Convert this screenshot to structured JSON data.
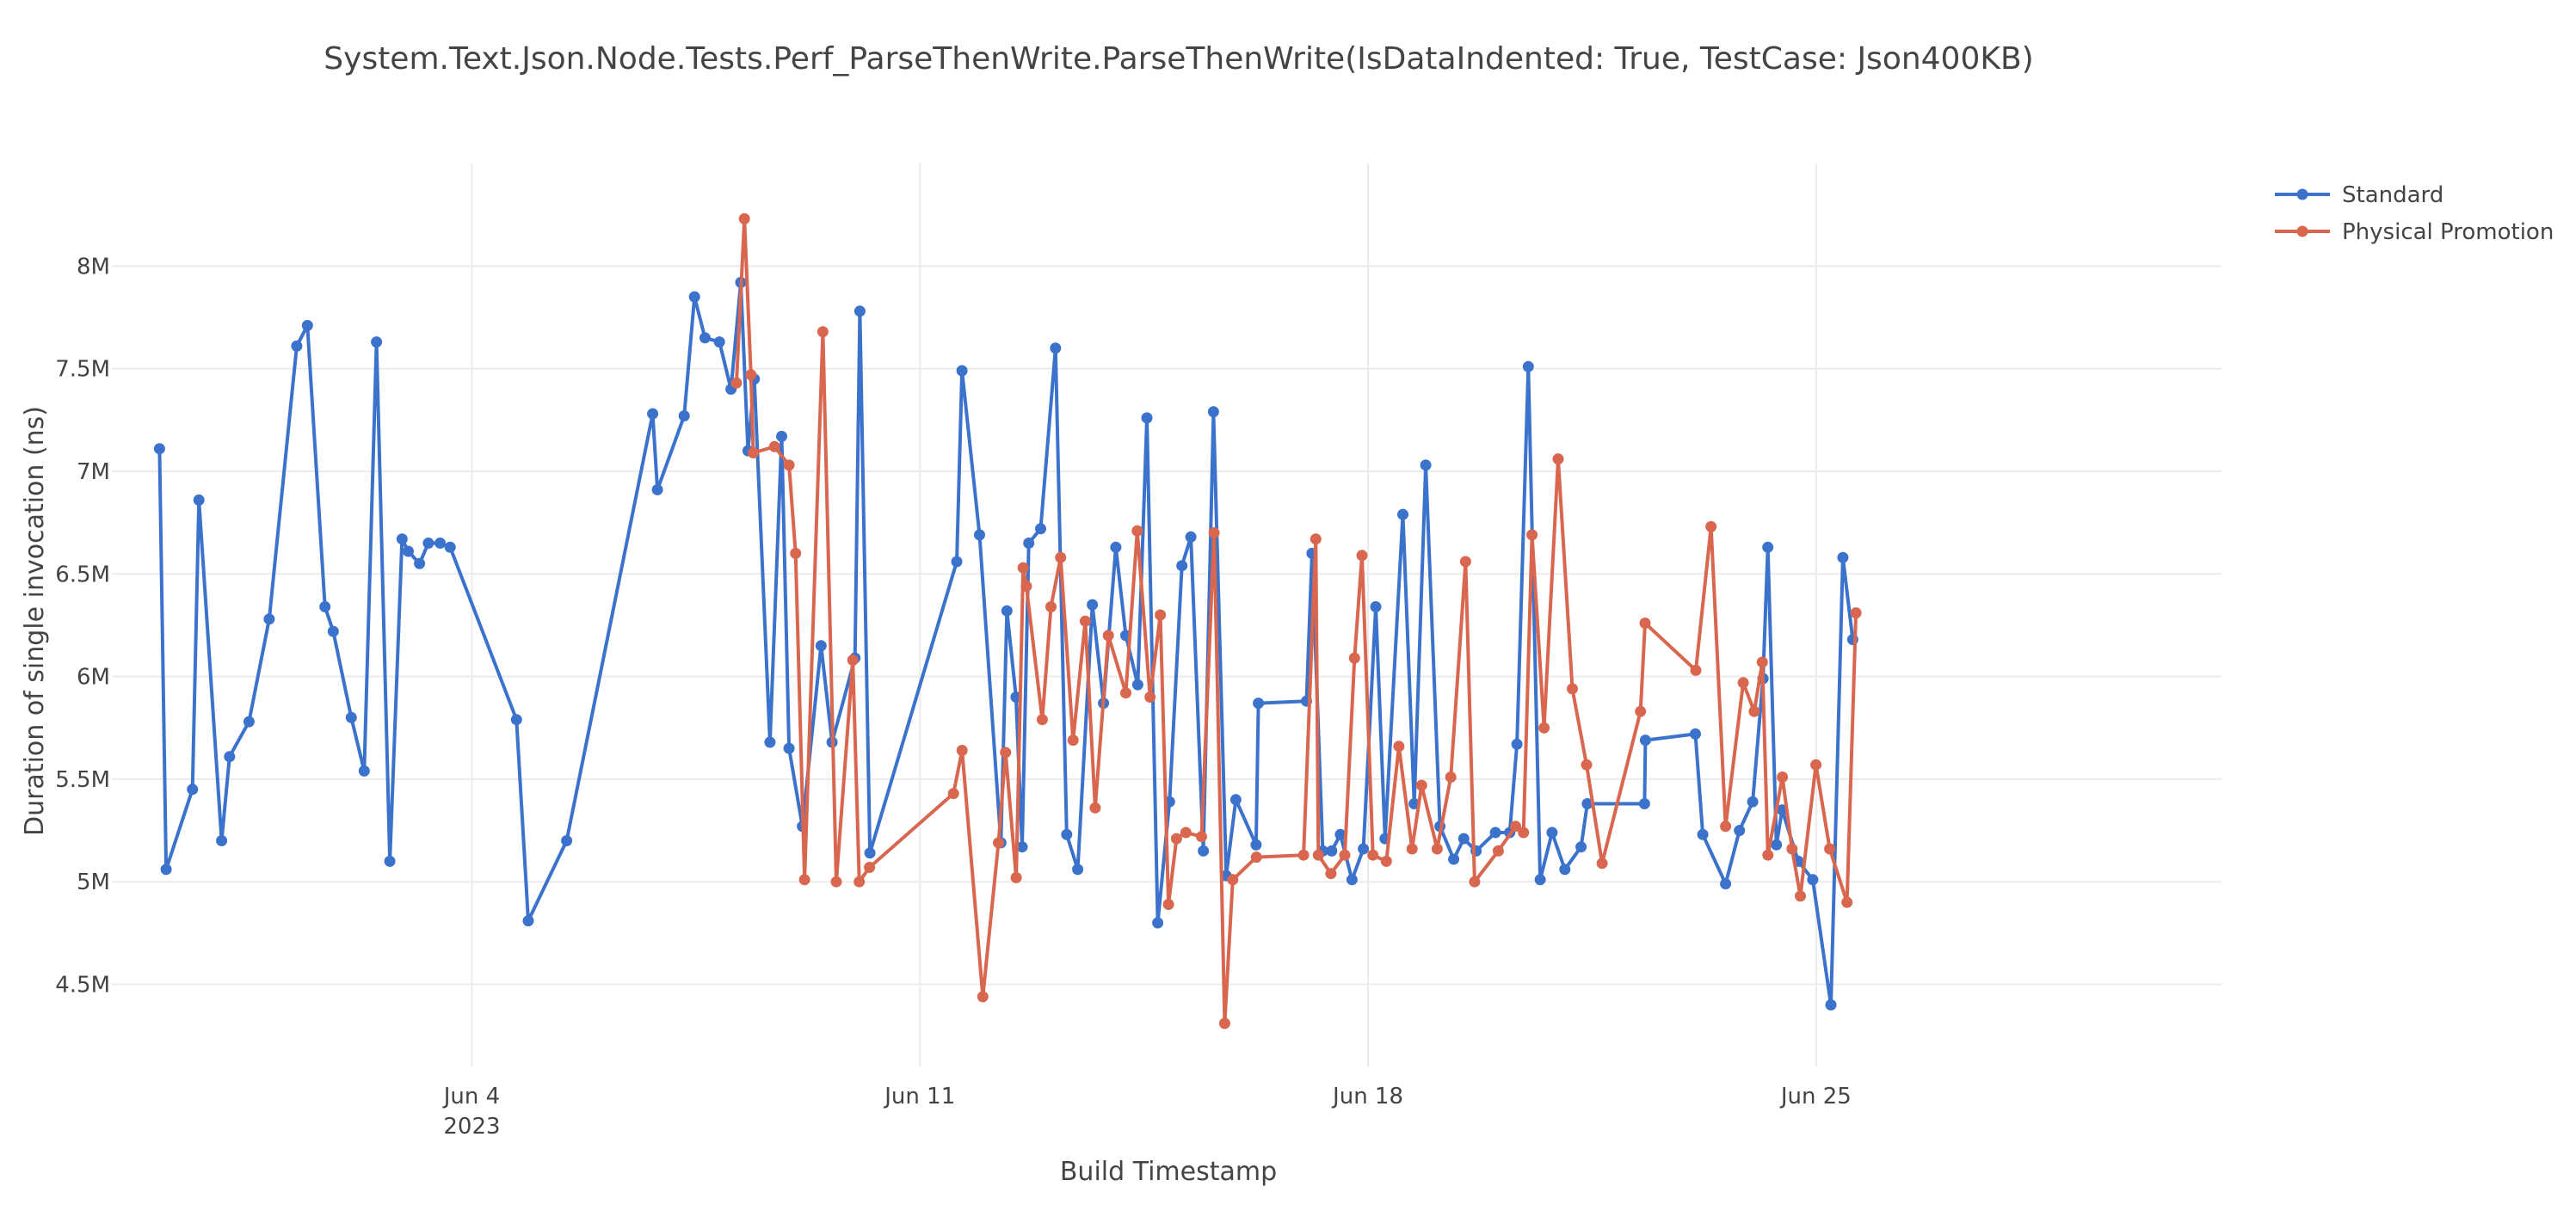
{
  "chart_data": {
    "type": "line",
    "title": "System.Text.Json.Node.Tests.Perf_ParseThenWrite.ParseThenWrite(IsDataIndented: True, TestCase: Json400KB)",
    "xlabel": "Build Timestamp",
    "ylabel": "Duration of single invocation (ns)",
    "x_ticks": [
      {
        "date": "2023-06-04",
        "label": "Jun 4",
        "sublabel": "2023"
      },
      {
        "date": "2023-06-11",
        "label": "Jun 11",
        "sublabel": ""
      },
      {
        "date": "2023-06-18",
        "label": "Jun 18",
        "sublabel": ""
      },
      {
        "date": "2023-06-25",
        "label": "Jun 25",
        "sublabel": ""
      }
    ],
    "y_ticks": [
      {
        "value": 4500000,
        "label": "4.5M"
      },
      {
        "value": 5000000,
        "label": "5M"
      },
      {
        "value": 5500000,
        "label": "5.5M"
      },
      {
        "value": 6000000,
        "label": "6M"
      },
      {
        "value": 6500000,
        "label": "6.5M"
      },
      {
        "value": 7000000,
        "label": "7M"
      },
      {
        "value": 7500000,
        "label": "7.5M"
      },
      {
        "value": 8000000,
        "label": "8M"
      }
    ],
    "xlim": [
      "2023-05-29 09:00",
      "2023-07-01 08:00"
    ],
    "ylim": [
      4100000,
      8500000
    ],
    "grid": true,
    "legend_position": "top-right",
    "series": [
      {
        "name": "Standard",
        "color": "#3b72cc",
        "points": [
          [
            "2023-05-30 02:52",
            7110000
          ],
          [
            "2023-05-30 05:21",
            5060000
          ],
          [
            "2023-05-30 15:14",
            5450000
          ],
          [
            "2023-05-30 17:38",
            6860000
          ],
          [
            "2023-05-31 02:10",
            5200000
          ],
          [
            "2023-05-31 05:07",
            5610000
          ],
          [
            "2023-05-31 12:26",
            5780000
          ],
          [
            "2023-05-31 20:00",
            6280000
          ],
          [
            "2023-06-01 06:20",
            7610000
          ],
          [
            "2023-06-01 10:19",
            7710000
          ],
          [
            "2023-06-01 16:54",
            6340000
          ],
          [
            "2023-06-01 20:01",
            6220000
          ],
          [
            "2023-06-02 02:47",
            5800000
          ],
          [
            "2023-06-02 07:37",
            5540000
          ],
          [
            "2023-06-02 12:14",
            7630000
          ],
          [
            "2023-06-02 17:14",
            5100000
          ],
          [
            "2023-06-02 21:48",
            6670000
          ],
          [
            "2023-06-03 00:08",
            6610000
          ],
          [
            "2023-06-03 04:21",
            6550000
          ],
          [
            "2023-06-03 07:40",
            6650000
          ],
          [
            "2023-06-03 12:07",
            6650000
          ],
          [
            "2023-06-03 15:51",
            6630000
          ],
          [
            "2023-06-04 16:42",
            5790000
          ],
          [
            "2023-06-04 21:09",
            4810000
          ],
          [
            "2023-06-05 11:32",
            5200000
          ],
          [
            "2023-06-06 19:47",
            7280000
          ],
          [
            "2023-06-06 21:33",
            6910000
          ],
          [
            "2023-06-07 07:35",
            7270000
          ],
          [
            "2023-06-07 11:27",
            7850000
          ],
          [
            "2023-06-07 15:23",
            7650000
          ],
          [
            "2023-06-07 20:49",
            7630000
          ],
          [
            "2023-06-08 01:09",
            7400000
          ],
          [
            "2023-06-08 04:48",
            7920000
          ],
          [
            "2023-06-08 07:31",
            7100000
          ],
          [
            "2023-06-08 09:52",
            7450000
          ],
          [
            "2023-06-08 15:46",
            5680000
          ],
          [
            "2023-06-08 20:09",
            7170000
          ],
          [
            "2023-06-08 22:55",
            5650000
          ],
          [
            "2023-06-09 03:55",
            5270000
          ],
          [
            "2023-06-09 10:55",
            6150000
          ],
          [
            "2023-06-09 15:02",
            5680000
          ],
          [
            "2023-06-09 23:37",
            6090000
          ],
          [
            "2023-06-10 01:27",
            7780000
          ],
          [
            "2023-06-10 05:15",
            5140000
          ],
          [
            "2023-06-11 13:48",
            6560000
          ],
          [
            "2023-06-11 15:45",
            7490000
          ],
          [
            "2023-06-11 22:21",
            6690000
          ],
          [
            "2023-06-12 06:21",
            5190000
          ],
          [
            "2023-06-12 08:35",
            6320000
          ],
          [
            "2023-06-12 12:00",
            5900000
          ],
          [
            "2023-06-12 14:18",
            5170000
          ],
          [
            "2023-06-12 16:48",
            6650000
          ],
          [
            "2023-06-12 21:14",
            6720000
          ],
          [
            "2023-06-13 02:50",
            7600000
          ],
          [
            "2023-06-13 07:01",
            5230000
          ],
          [
            "2023-06-13 11:08",
            5060000
          ],
          [
            "2023-06-13 16:37",
            6350000
          ],
          [
            "2023-06-13 20:50",
            5870000
          ],
          [
            "2023-06-14 01:27",
            6630000
          ],
          [
            "2023-06-14 05:10",
            6200000
          ],
          [
            "2023-06-14 09:40",
            5960000
          ],
          [
            "2023-06-14 13:05",
            7260000
          ],
          [
            "2023-06-14 17:08",
            4800000
          ],
          [
            "2023-06-14 21:33",
            5390000
          ],
          [
            "2023-06-15 02:12",
            6540000
          ],
          [
            "2023-06-15 05:33",
            6680000
          ],
          [
            "2023-06-15 10:14",
            5150000
          ],
          [
            "2023-06-15 14:02",
            7290000
          ],
          [
            "2023-06-15 18:49",
            5030000
          ],
          [
            "2023-06-15 22:27",
            5400000
          ],
          [
            "2023-06-16 06:01",
            5180000
          ],
          [
            "2023-06-16 06:53",
            5870000
          ],
          [
            "2023-06-17 00:55",
            5880000
          ],
          [
            "2023-06-17 03:00",
            6600000
          ],
          [
            "2023-06-17 07:02",
            5150000
          ],
          [
            "2023-06-17 10:22",
            5150000
          ],
          [
            "2023-06-17 13:37",
            5230000
          ],
          [
            "2023-06-17 17:59",
            5010000
          ],
          [
            "2023-06-17 22:14",
            5160000
          ],
          [
            "2023-06-18 02:53",
            6340000
          ],
          [
            "2023-06-18 06:23",
            5210000
          ],
          [
            "2023-06-18 13:04",
            6790000
          ],
          [
            "2023-06-18 17:19",
            5380000
          ],
          [
            "2023-06-18 21:38",
            7030000
          ],
          [
            "2023-06-19 02:58",
            5270000
          ],
          [
            "2023-06-19 08:07",
            5110000
          ],
          [
            "2023-06-19 11:53",
            5210000
          ],
          [
            "2023-06-19 16:30",
            5150000
          ],
          [
            "2023-06-19 23:46",
            5240000
          ],
          [
            "2023-06-20 05:07",
            5240000
          ],
          [
            "2023-06-20 07:49",
            5670000
          ],
          [
            "2023-06-20 12:05",
            7510000
          ],
          [
            "2023-06-20 16:33",
            5010000
          ],
          [
            "2023-06-20 20:59",
            5240000
          ],
          [
            "2023-06-21 01:48",
            5060000
          ],
          [
            "2023-06-21 07:51",
            5170000
          ],
          [
            "2023-06-21 10:12",
            5380000
          ],
          [
            "2023-06-22 07:40",
            5380000
          ],
          [
            "2023-06-22 07:59",
            5690000
          ],
          [
            "2023-06-23 02:45",
            5720000
          ],
          [
            "2023-06-23 05:30",
            5230000
          ],
          [
            "2023-06-23 14:03",
            4990000
          ],
          [
            "2023-06-23 19:16",
            5250000
          ],
          [
            "2023-06-24 00:14",
            5390000
          ],
          [
            "2023-06-24 04:05",
            5990000
          ],
          [
            "2023-06-24 05:54",
            6630000
          ],
          [
            "2023-06-24 09:08",
            5180000
          ],
          [
            "2023-06-24 11:15",
            5350000
          ],
          [
            "2023-06-24 17:18",
            5100000
          ],
          [
            "2023-06-24 22:45",
            5010000
          ],
          [
            "2023-06-25 05:32",
            4400000
          ],
          [
            "2023-06-25 10:02",
            6580000
          ],
          [
            "2023-06-25 13:44",
            6180000
          ]
        ]
      },
      {
        "name": "Physical Promotion",
        "color": "#d9674f",
        "points": [
          [
            "2023-06-08 03:12",
            7430000
          ],
          [
            "2023-06-08 06:11",
            8230000
          ],
          [
            "2023-06-08 08:38",
            7470000
          ],
          [
            "2023-06-08 09:30",
            7090000
          ],
          [
            "2023-06-08 17:27",
            7120000
          ],
          [
            "2023-06-08 22:55",
            7030000
          ],
          [
            "2023-06-09 01:22",
            6600000
          ],
          [
            "2023-06-09 04:43",
            5010000
          ],
          [
            "2023-06-09 11:36",
            7680000
          ],
          [
            "2023-06-09 16:38",
            5000000
          ],
          [
            "2023-06-09 22:49",
            6080000
          ],
          [
            "2023-06-10 01:14",
            5000000
          ],
          [
            "2023-06-10 05:05",
            5070000
          ],
          [
            "2023-06-11 12:34",
            5430000
          ],
          [
            "2023-06-11 15:47",
            5640000
          ],
          [
            "2023-06-11 23:34",
            4440000
          ],
          [
            "2023-06-12 05:26",
            5190000
          ],
          [
            "2023-06-12 08:05",
            5630000
          ],
          [
            "2023-06-12 12:05",
            5020000
          ],
          [
            "2023-06-12 14:42",
            6530000
          ],
          [
            "2023-06-12 15:54",
            6440000
          ],
          [
            "2023-06-12 21:52",
            5790000
          ],
          [
            "2023-06-13 01:07",
            6340000
          ],
          [
            "2023-06-13 04:43",
            6580000
          ],
          [
            "2023-06-13 09:24",
            5690000
          ],
          [
            "2023-06-13 13:59",
            6270000
          ],
          [
            "2023-06-13 17:41",
            5360000
          ],
          [
            "2023-06-13 22:38",
            6200000
          ],
          [
            "2023-06-14 05:10",
            5920000
          ],
          [
            "2023-06-14 09:29",
            6710000
          ],
          [
            "2023-06-14 14:17",
            5900000
          ],
          [
            "2023-06-14 18:07",
            6300000
          ],
          [
            "2023-06-14 21:11",
            4890000
          ],
          [
            "2023-06-15 00:10",
            5210000
          ],
          [
            "2023-06-15 03:41",
            5240000
          ],
          [
            "2023-06-15 09:33",
            5220000
          ],
          [
            "2023-06-15 14:17",
            6700000
          ],
          [
            "2023-06-15 18:14",
            4310000
          ],
          [
            "2023-06-15 21:17",
            5010000
          ],
          [
            "2023-06-16 06:08",
            5120000
          ],
          [
            "2023-06-16 23:50",
            5130000
          ],
          [
            "2023-06-17 04:24",
            6670000
          ],
          [
            "2023-06-17 05:22",
            5130000
          ],
          [
            "2023-06-17 10:05",
            5040000
          ],
          [
            "2023-06-17 15:16",
            5130000
          ],
          [
            "2023-06-17 18:55",
            6090000
          ],
          [
            "2023-06-17 21:43",
            6590000
          ],
          [
            "2023-06-18 01:50",
            5130000
          ],
          [
            "2023-06-18 06:52",
            5100000
          ],
          [
            "2023-06-18 11:34",
            5660000
          ],
          [
            "2023-06-18 16:30",
            5160000
          ],
          [
            "2023-06-18 20:05",
            5470000
          ],
          [
            "2023-06-19 01:55",
            5160000
          ],
          [
            "2023-06-19 07:02",
            5510000
          ],
          [
            "2023-06-19 12:34",
            6560000
          ],
          [
            "2023-06-19 15:58",
            5000000
          ],
          [
            "2023-06-20 00:49",
            5150000
          ],
          [
            "2023-06-20 07:18",
            5270000
          ],
          [
            "2023-06-20 10:16",
            5240000
          ],
          [
            "2023-06-20 13:28",
            6690000
          ],
          [
            "2023-06-20 18:00",
            5750000
          ],
          [
            "2023-06-20 23:16",
            7060000
          ],
          [
            "2023-06-21 04:37",
            5940000
          ],
          [
            "2023-06-21 09:55",
            5570000
          ],
          [
            "2023-06-21 15:46",
            5090000
          ],
          [
            "2023-06-22 06:10",
            5830000
          ],
          [
            "2023-06-22 07:51",
            6260000
          ],
          [
            "2023-06-23 02:53",
            6030000
          ],
          [
            "2023-06-23 08:37",
            6730000
          ],
          [
            "2023-06-23 14:03",
            5270000
          ],
          [
            "2023-06-23 20:41",
            5970000
          ],
          [
            "2023-06-24 00:47",
            5830000
          ],
          [
            "2023-06-24 03:49",
            6070000
          ],
          [
            "2023-06-24 05:55",
            5130000
          ],
          [
            "2023-06-24 11:21",
            5510000
          ],
          [
            "2023-06-24 14:57",
            5160000
          ],
          [
            "2023-06-24 18:06",
            4930000
          ],
          [
            "2023-06-24 23:56",
            5570000
          ],
          [
            "2023-06-25 05:05",
            5160000
          ],
          [
            "2023-06-25 11:35",
            4900000
          ],
          [
            "2023-06-25 14:56",
            6310000
          ]
        ]
      }
    ]
  }
}
